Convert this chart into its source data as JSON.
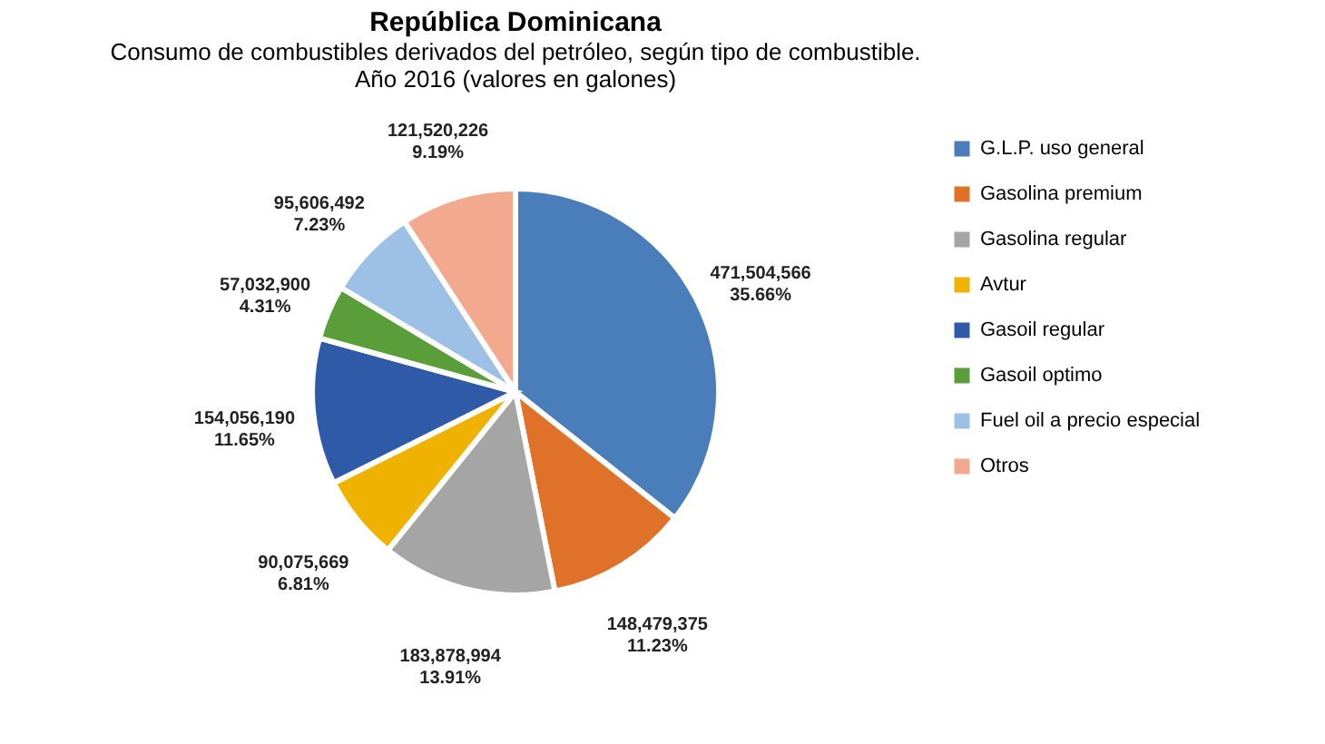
{
  "chart_data": {
    "type": "pie",
    "title": "República Dominicana",
    "subtitle": "Consumo de combustibles derivados del petróleo, según tipo de combustible.\nAño 2016 (valores en galones)",
    "categories": [
      "G.L.P. uso general",
      "Gasolina premium",
      "Gasolina regular",
      "Avtur",
      "Gasoil regular",
      "Gasoil optimo",
      "Fuel oil a precio especial",
      "Otros"
    ],
    "values": [
      471504566,
      148479375,
      183878994,
      90075669,
      154056190,
      57032900,
      95606492,
      121520226
    ],
    "value_labels": [
      "471,504,566\n35.66%",
      "148,479,375\n11.23%",
      "183,878,994\n13.91%",
      "90,075,669\n6.81%",
      "154,056,190\n11.65%",
      "57,032,900\n4.31%",
      "95,606,492\n7.23%",
      "121,520,226\n9.19%"
    ],
    "colors": [
      "#4a7ebb",
      "#e07128",
      "#a5a5a5",
      "#f0b200",
      "#2e5aa8",
      "#5a9e3a",
      "#9dc0e6",
      "#f2a98e"
    ],
    "legend": "right"
  }
}
